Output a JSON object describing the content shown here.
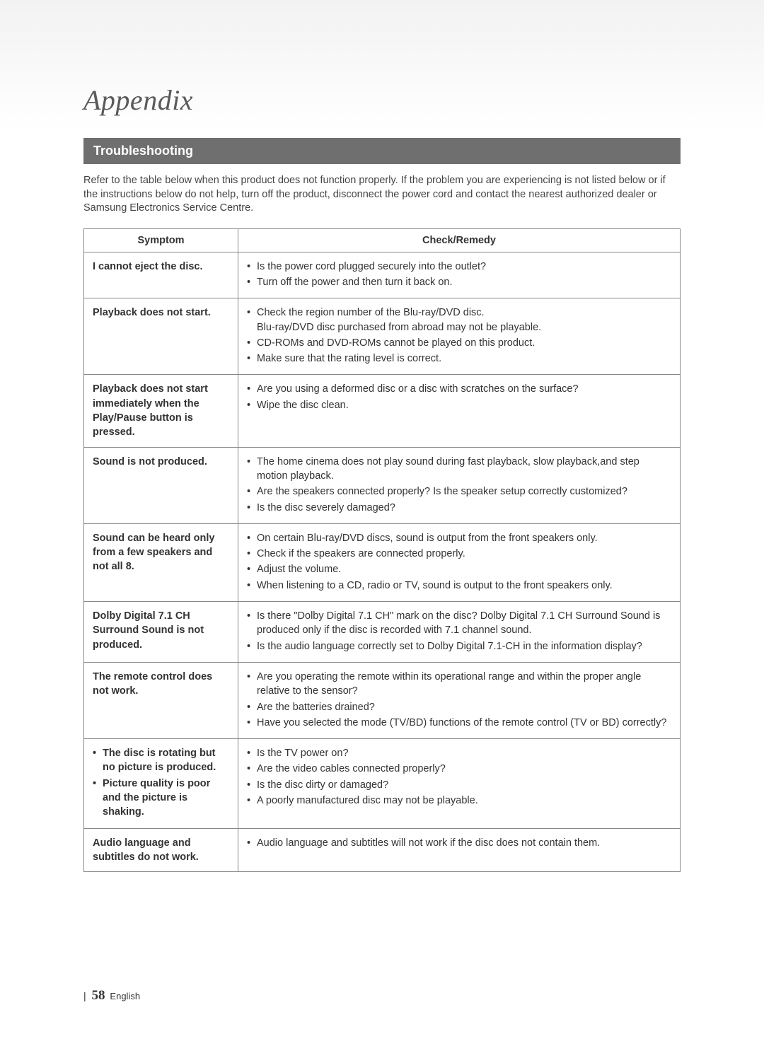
{
  "header": {
    "title": "Appendix"
  },
  "section": {
    "heading": "Troubleshooting",
    "intro": "Refer to the table below when this product does not function properly. If the problem you are experiencing is not listed below or if the instructions below do not help, turn off the product, disconnect the power cord and contact the nearest authorized dealer or Samsung Electronics Service Centre."
  },
  "table": {
    "col_symptom": "Symptom",
    "col_remedy": "Check/Remedy",
    "rows": [
      {
        "symptom_text": "I cannot eject the disc.",
        "symptom_list": null,
        "remedies": [
          "Is the power cord plugged securely into the outlet?",
          "Turn off the power and then turn it back on."
        ]
      },
      {
        "symptom_text": "Playback does not start.",
        "symptom_list": null,
        "remedies": [
          "Check the region number of the Blu-ray/DVD disc.\nBlu-ray/DVD disc purchased from abroad may not be playable.",
          "CD-ROMs and DVD-ROMs cannot be played on this product.",
          "Make sure that the rating level is correct."
        ]
      },
      {
        "symptom_text": "Playback does not start immediately when the Play/Pause button is pressed.",
        "symptom_list": null,
        "remedies": [
          "Are you using a deformed disc or a disc with scratches on the surface?",
          "Wipe the disc clean."
        ]
      },
      {
        "symptom_text": "Sound is not produced.",
        "symptom_list": null,
        "remedies": [
          "The home cinema does not play sound during fast playback, slow playback,and step motion playback.",
          "Are the speakers connected properly? Is the speaker setup correctly customized?",
          "Is the disc severely damaged?"
        ]
      },
      {
        "symptom_text": "Sound can be heard only from a few speakers and not all 8.",
        "symptom_list": null,
        "remedies": [
          "On certain Blu-ray/DVD discs, sound is output from the front speakers only.",
          "Check if the speakers are connected properly.",
          "Adjust the volume.",
          "When listening to a CD, radio or TV, sound is output to the front speakers only."
        ]
      },
      {
        "symptom_text": "Dolby Digital 7.1 CH Surround Sound is not produced.",
        "symptom_list": null,
        "remedies": [
          "Is there \"Dolby Digital 7.1 CH\" mark on the disc? Dolby Digital 7.1 CH Surround Sound is produced only if the disc is recorded with 7.1 channel sound.",
          "Is the audio language correctly set to Dolby Digital 7.1-CH in the information display?"
        ]
      },
      {
        "symptom_text": "The remote control does not work.",
        "symptom_list": null,
        "remedies": [
          "Are you operating the remote within its operational range and within the proper angle relative to the sensor?",
          "Are the batteries drained?",
          "Have you selected the mode (TV/BD) functions of the remote control (TV or BD) correctly?"
        ]
      },
      {
        "symptom_text": null,
        "symptom_list": [
          "The disc is rotating but no picture is produced.",
          "Picture quality is poor and the picture is shaking."
        ],
        "remedies": [
          "Is the TV power on?",
          "Are the video cables connected properly?",
          "Is the disc dirty or damaged?",
          "A poorly manufactured disc may not be playable."
        ]
      },
      {
        "symptom_text": "Audio language and subtitles do not work.",
        "symptom_list": null,
        "remedies": [
          "Audio language and subtitles will not work if the disc does not contain them."
        ]
      }
    ]
  },
  "footer": {
    "pipe": "|",
    "page_number": "58",
    "language": "English"
  },
  "colors": {
    "section_bg": "#6f6f6f",
    "section_fg": "#ffffff",
    "border": "#888888",
    "text": "#333333",
    "title": "#5a5a5a"
  }
}
